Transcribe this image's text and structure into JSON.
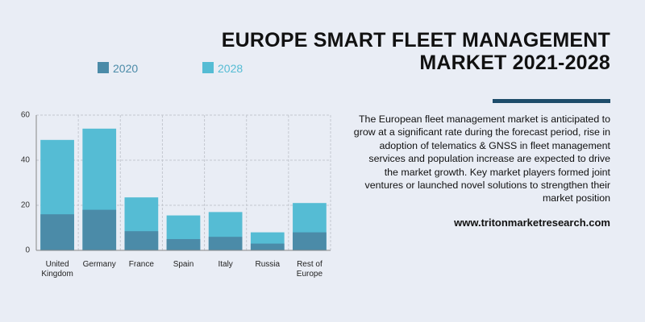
{
  "header": {
    "title_lines": [
      "EUROPE SMART FLEET MANAGEMENT",
      "MARKET 2021-2028"
    ],
    "description": "The European fleet management market is anticipated to grow at a significant rate during the forecast period, rise in adoption of telematics & GNSS in fleet management services and population increase are expected to drive the market growth. Key market players formed joint ventures or launched novel solutions to strengthen their market position",
    "website": "www.tritonmarketresearch.com"
  },
  "chart_data": {
    "type": "bar",
    "overlap": true,
    "categories": [
      "United Kingdom",
      "Germany",
      "France",
      "Spain",
      "Italy",
      "Russia",
      "Rest of Europe"
    ],
    "series": [
      {
        "name": "2028",
        "color": "#55bcd4",
        "values": [
          49,
          54,
          23.5,
          15.5,
          17,
          8,
          21
        ]
      },
      {
        "name": "2020",
        "color": "#4b8ba8",
        "values": [
          16,
          18,
          8.5,
          5,
          6,
          3,
          8
        ]
      }
    ],
    "legend_order": [
      1,
      0
    ],
    "ylim": [
      0,
      60
    ],
    "yticks": [
      0,
      20,
      40,
      60
    ],
    "grid": true
  }
}
